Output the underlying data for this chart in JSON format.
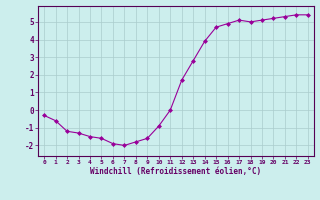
{
  "x": [
    0,
    1,
    2,
    3,
    4,
    5,
    6,
    7,
    8,
    9,
    10,
    11,
    12,
    13,
    14,
    15,
    16,
    17,
    18,
    19,
    20,
    21,
    22,
    23
  ],
  "y": [
    -0.3,
    -0.6,
    -1.2,
    -1.3,
    -1.5,
    -1.6,
    -1.9,
    -2.0,
    -1.8,
    -1.6,
    -0.9,
    0.0,
    1.7,
    2.8,
    3.9,
    4.7,
    4.9,
    5.1,
    5.0,
    5.1,
    5.2,
    5.3,
    5.4,
    5.4
  ],
  "xlabel": "Windchill (Refroidissement éolien,°C)",
  "xlim": [
    -0.5,
    23.5
  ],
  "ylim": [
    -2.6,
    5.9
  ],
  "yticks": [
    -2,
    -1,
    0,
    1,
    2,
    3,
    4,
    5
  ],
  "xticks": [
    0,
    1,
    2,
    3,
    4,
    5,
    6,
    7,
    8,
    9,
    10,
    11,
    12,
    13,
    14,
    15,
    16,
    17,
    18,
    19,
    20,
    21,
    22,
    23
  ],
  "line_color": "#990099",
  "marker": "D",
  "marker_size": 2.0,
  "bg_color": "#cceeed",
  "grid_color": "#aacccc",
  "axis_color": "#550055",
  "label_color": "#660066",
  "tick_color": "#660066",
  "xlabel_fontsize": 5.5,
  "tick_fontsize_x": 4.5,
  "tick_fontsize_y": 5.5
}
